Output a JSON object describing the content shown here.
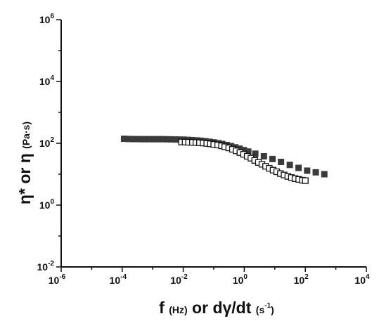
{
  "chart_data": {
    "type": "scatter",
    "x_scale": "log",
    "y_scale": "log",
    "xlim": [
      1e-06,
      10000.0
    ],
    "ylim": [
      0.01,
      1000000.0
    ],
    "x_ticks": [
      {
        "value": 1e-06,
        "base": "10",
        "exp": "-6"
      },
      {
        "value": 0.0001,
        "base": "10",
        "exp": "-4"
      },
      {
        "value": 0.01,
        "base": "10",
        "exp": "-2"
      },
      {
        "value": 1,
        "base": "10",
        "exp": "0"
      },
      {
        "value": 100,
        "base": "10",
        "exp": "2"
      },
      {
        "value": 10000,
        "base": "10",
        "exp": "4"
      }
    ],
    "y_ticks": [
      {
        "value": 0.01,
        "base": "10",
        "exp": "-2"
      },
      {
        "value": 1,
        "base": "10",
        "exp": "0"
      },
      {
        "value": 100,
        "base": "10",
        "exp": "2"
      },
      {
        "value": 10000.0,
        "base": "10",
        "exp": "4"
      },
      {
        "value": 1000000.0,
        "base": "10",
        "exp": "6"
      }
    ],
    "xlabel": {
      "part1": "f ",
      "part2": "(Hz)",
      "part3": " or dγ/dt ",
      "part4": "(s",
      "part5": "-1",
      "part6": ")"
    },
    "ylabel": {
      "part1": "η* or η ",
      "part2": "(Pa·s)"
    },
    "grid": false,
    "legend": "none",
    "series": [
      {
        "marker": "filled-square",
        "color": "#3a3a3a",
        "points": [
          [
            0.000115,
            140
          ],
          [
            0.00016,
            138
          ],
          [
            0.00022,
            137
          ],
          [
            0.0003,
            137
          ],
          [
            0.00042,
            136
          ],
          [
            0.00058,
            136
          ],
          [
            0.0008,
            136
          ],
          [
            0.0011,
            136
          ],
          [
            0.0015,
            136
          ],
          [
            0.0021,
            136
          ],
          [
            0.0029,
            135
          ],
          [
            0.004,
            134
          ],
          [
            0.0055,
            133
          ],
          [
            0.0076,
            132
          ],
          [
            0.0105,
            131
          ],
          [
            0.0145,
            129
          ],
          [
            0.02,
            127
          ],
          [
            0.028,
            124
          ],
          [
            0.038,
            121
          ],
          [
            0.053,
            117
          ],
          [
            0.073,
            112
          ],
          [
            0.1,
            107
          ],
          [
            0.14,
            101
          ],
          [
            0.19,
            95
          ],
          [
            0.27,
            88
          ],
          [
            0.37,
            81
          ],
          [
            0.51,
            74
          ],
          [
            0.7,
            67
          ],
          [
            0.97,
            60
          ],
          [
            1.35,
            54
          ],
          [
            2.3,
            46
          ],
          [
            4.4,
            38
          ],
          [
            8.4,
            31
          ],
          [
            16,
            25
          ],
          [
            31,
            20
          ],
          [
            60,
            16
          ],
          [
            115,
            13
          ],
          [
            220,
            11.5
          ],
          [
            420,
            10
          ]
        ]
      },
      {
        "marker": "open-square",
        "color": "#111111",
        "points": [
          [
            0.0088,
            110
          ],
          [
            0.0115,
            109
          ],
          [
            0.015,
            108
          ],
          [
            0.02,
            107
          ],
          [
            0.026,
            106
          ],
          [
            0.034,
            104
          ],
          [
            0.045,
            102
          ],
          [
            0.059,
            99
          ],
          [
            0.078,
            96
          ],
          [
            0.1,
            92
          ],
          [
            0.135,
            88
          ],
          [
            0.18,
            83
          ],
          [
            0.23,
            77
          ],
          [
            0.31,
            71
          ],
          [
            0.41,
            64
          ],
          [
            0.54,
            57
          ],
          [
            0.72,
            50
          ],
          [
            0.95,
            44
          ],
          [
            1.25,
            38
          ],
          [
            1.65,
            33
          ],
          [
            2.2,
            28
          ],
          [
            2.9,
            24
          ],
          [
            3.8,
            21
          ],
          [
            5.0,
            18
          ],
          [
            6.6,
            15.5
          ],
          [
            8.8,
            13.5
          ],
          [
            11.6,
            12
          ],
          [
            15.3,
            10.5
          ],
          [
            20.2,
            9.4
          ],
          [
            26.7,
            8.5
          ],
          [
            35,
            7.8
          ],
          [
            46,
            7.2
          ],
          [
            61,
            6.8
          ],
          [
            80,
            6.4
          ],
          [
            100,
            6.2
          ]
        ]
      }
    ]
  }
}
